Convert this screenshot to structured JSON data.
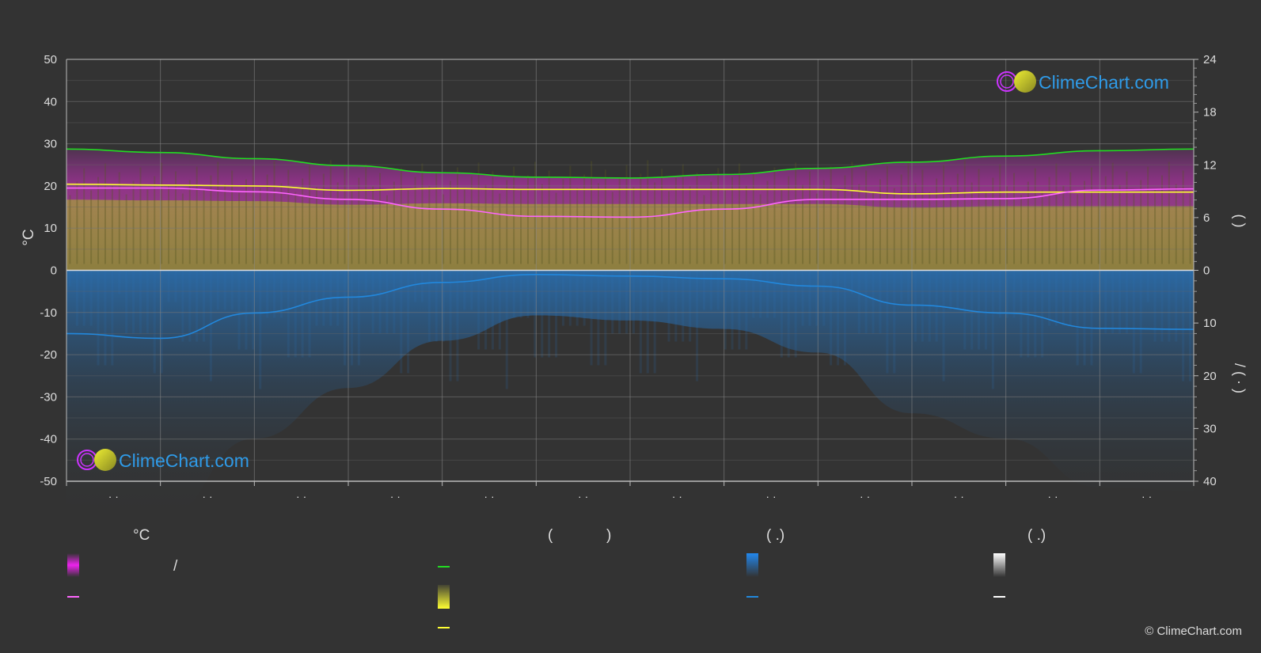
{
  "brand": {
    "name": "ClimeChart.com",
    "copyright": "© ClimeChart.com"
  },
  "colors": {
    "background": "#333333",
    "grid": "#777777",
    "daylight": "#22dd22",
    "sunshine": "#ffff33",
    "temp_avg": "#ff66ff",
    "precip": "#2288dd",
    "temp_band": "#dd22dd",
    "logo_text": "#2f9be8"
  },
  "legend": {
    "temperature_header": "°C",
    "sun_header_open": "(",
    "sun_header_close": ")",
    "rain_header": "(   .)",
    "snow_header": "(   .)",
    "temp_range_sep": "/"
  },
  "chart_data": {
    "type": "line",
    "months": [
      "· ·",
      "· ·",
      "· ·",
      "· ·",
      "· ·",
      "· ·",
      "· ·",
      "· ·",
      "· ·",
      "· ·",
      "· ·",
      "· ·"
    ],
    "left_axis": {
      "label": "°C",
      "ticks": [
        50,
        40,
        30,
        20,
        10,
        0,
        -10,
        -20,
        -30,
        -40,
        -50
      ],
      "ylim": [
        -50,
        50
      ]
    },
    "right_axis_top": {
      "label": "(   )",
      "ticks": [
        24,
        18,
        12,
        6,
        0
      ],
      "ylim": [
        0,
        24
      ]
    },
    "right_axis_bottom": {
      "label": "/ ( · )",
      "ticks": [
        0,
        10,
        20,
        30,
        40
      ],
      "ylim": [
        0,
        40
      ]
    },
    "grid": true,
    "series": [
      {
        "key": "daylight",
        "axis": "hours",
        "x": [
          0,
          1,
          2,
          3,
          4,
          5,
          6,
          7,
          8,
          9,
          10,
          11,
          12
        ],
        "values": [
          13.8,
          13.4,
          12.7,
          11.9,
          11.1,
          10.6,
          10.5,
          10.9,
          11.6,
          12.3,
          13.0,
          13.6,
          13.8
        ]
      },
      {
        "key": "sunshine",
        "axis": "hours",
        "x": [
          0,
          1,
          2,
          3,
          4,
          5,
          6,
          7,
          8,
          9,
          10,
          11,
          12
        ],
        "values": [
          9.8,
          9.7,
          9.6,
          9.1,
          9.3,
          9.2,
          9.2,
          9.2,
          9.2,
          8.7,
          8.9,
          8.9,
          8.9
        ]
      },
      {
        "key": "temp_avg",
        "axis": "temperature",
        "x": [
          0,
          1,
          2,
          3,
          4,
          5,
          6,
          7,
          8,
          9,
          10,
          11,
          12
        ],
        "values": [
          19.5,
          19.5,
          18.6,
          16.8,
          14.5,
          12.8,
          12.6,
          14.5,
          16.8,
          16.8,
          17.0,
          19.0,
          19.3
        ]
      },
      {
        "key": "precip",
        "axis": "precipitation",
        "x": [
          0,
          1,
          2,
          3,
          4,
          5,
          6,
          7,
          8,
          9,
          10,
          11,
          12
        ],
        "values": [
          12.0,
          12.9,
          8.1,
          5.1,
          2.3,
          0.8,
          1.1,
          1.6,
          3.0,
          6.6,
          8.1,
          11.0,
          11.2
        ]
      }
    ]
  }
}
